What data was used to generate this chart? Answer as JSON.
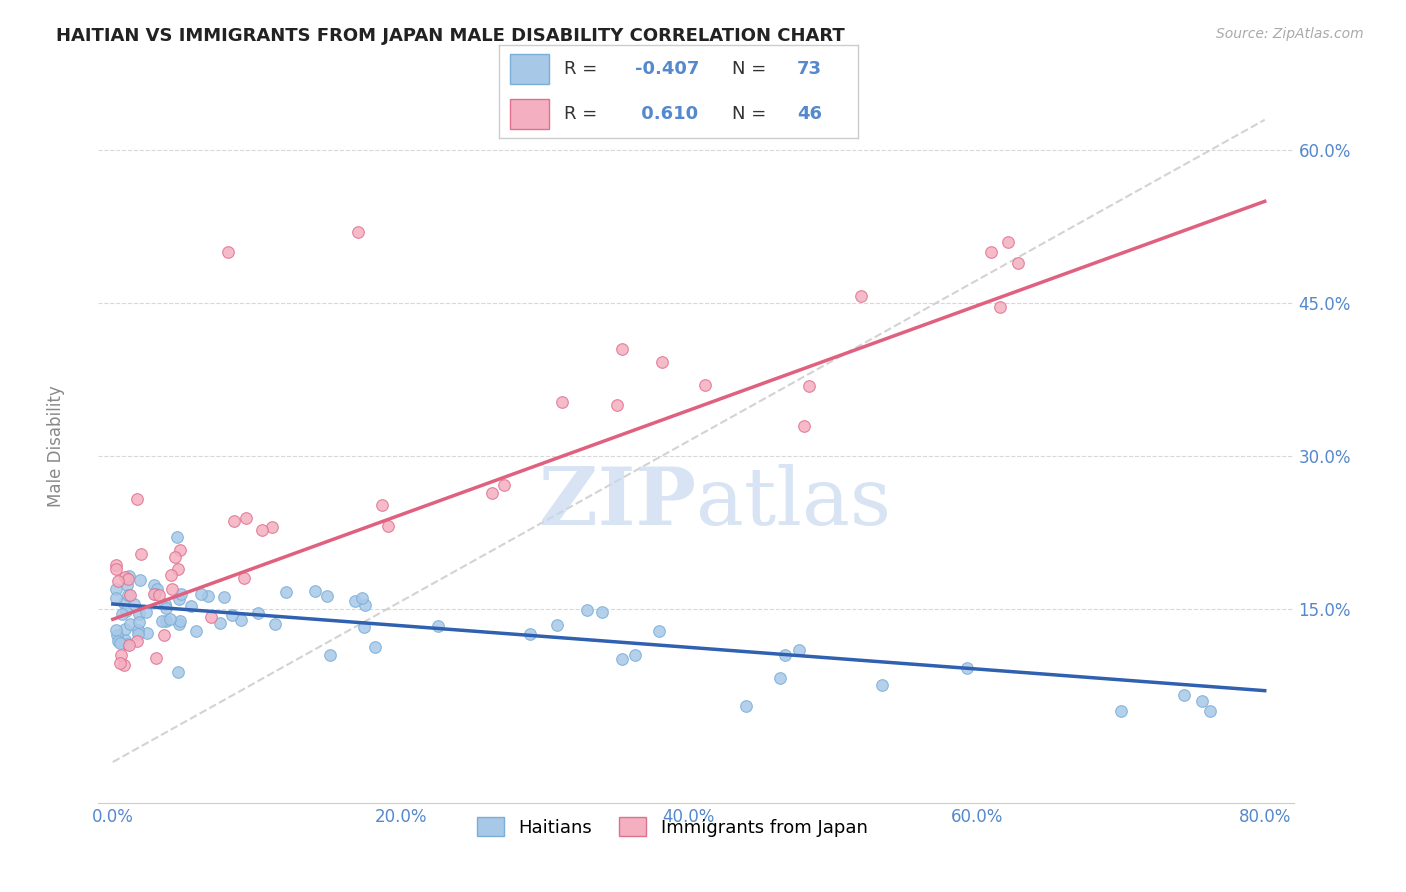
{
  "title": "HAITIAN VS IMMIGRANTS FROM JAPAN MALE DISABILITY CORRELATION CHART",
  "source": "Source: ZipAtlas.com",
  "xlabel_ticks": [
    0.0,
    20.0,
    40.0,
    60.0,
    80.0
  ],
  "ylabel_ticks": [
    15.0,
    30.0,
    45.0,
    60.0
  ],
  "xlim": [
    -1.0,
    82.0
  ],
  "ylim": [
    -4.0,
    66.0
  ],
  "haitian_R": -0.407,
  "haitian_N": 73,
  "japan_R": 0.61,
  "japan_N": 46,
  "haitian_marker_color": "#a8c8e8",
  "haitian_edge_color": "#7aaed6",
  "japan_marker_color": "#f4b0c0",
  "japan_edge_color": "#e07090",
  "haitian_line_color": "#3060b0",
  "japan_line_color": "#e06080",
  "diagonal_color": "#c8c8c8",
  "grid_color": "#d8d8d8",
  "title_color": "#222222",
  "axis_label_color": "#5588cc",
  "ylabel_label_color": "#888888",
  "watermark_color": "#c8d8f0",
  "legend_label1": "Haitians",
  "legend_label2": "Immigrants from Japan",
  "watermark": "ZIPatlas"
}
